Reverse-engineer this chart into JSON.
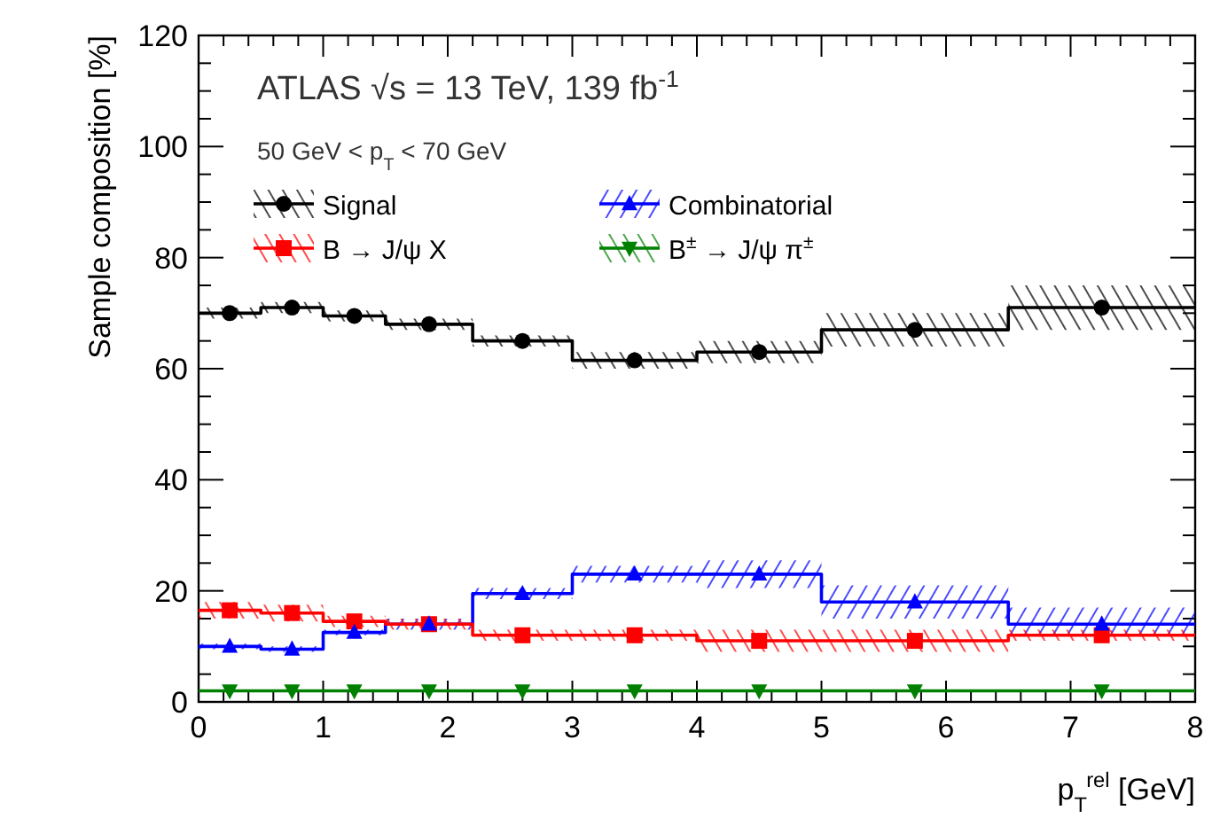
{
  "chart_data": {
    "type": "step",
    "xlabel": "p$_{T}$$^{rel}$ [GeV]",
    "ylabel": "Sample composition [%]",
    "annotations": [
      "ATLAS √s = 13 TeV, 139 fb$^{-1}$",
      "50 GeV < p$_{T}$ < 70 GeV"
    ],
    "series": [
      {
        "name": "Signal",
        "color": "#000000",
        "x": [
          0,
          0.5,
          1,
          1.5,
          2.2,
          3,
          4,
          5,
          6.5,
          8
        ],
        "values": [
          70,
          71,
          69.5,
          68,
          65,
          61.5,
          63,
          67,
          71,
          71
        ],
        "lower": [
          69,
          70,
          68.5,
          67,
          64,
          60,
          61,
          64,
          67,
          67
        ],
        "upper": [
          71,
          72,
          70.5,
          69,
          66,
          63,
          65,
          70,
          75,
          75
        ]
      },
      {
        "type": "scatter",
        "color": "#000000",
        "marker": "circle",
        "x": [
          0.25,
          0.75,
          1.25,
          1.85,
          2.6,
          3.5,
          4.5,
          5.75,
          7.25
        ],
        "values": [
          70,
          71,
          69.5,
          68,
          65,
          61.5,
          63,
          67,
          71
        ]
      },
      {
        "name": "Combinatorial",
        "color": "#0000ff",
        "x": [
          0,
          0.5,
          1,
          1.5,
          2.2,
          3,
          4,
          5,
          6.5,
          8
        ],
        "values": [
          10,
          9.5,
          12.5,
          14,
          19.5,
          23,
          23,
          18,
          14,
          14
        ],
        "lower": [
          9.5,
          9,
          12,
          13,
          18.5,
          21.5,
          20.5,
          15,
          12,
          12
        ],
        "upper": [
          10.5,
          10,
          13,
          15,
          20.5,
          24.5,
          25.5,
          21,
          17,
          17
        ]
      },
      {
        "type": "scatter",
        "color": "#0000ff",
        "marker": "triangle",
        "x": [
          0.25,
          0.75,
          1.25,
          1.85,
          2.6,
          3.5,
          4.5,
          5.75,
          7.25
        ],
        "values": [
          10,
          9.5,
          12.5,
          14,
          19.5,
          23,
          23,
          18,
          14
        ]
      },
      {
        "name": "B → J/ψ X",
        "color": "#ff0000",
        "x": [
          0,
          0.5,
          1,
          1.5,
          2.2,
          3,
          4,
          5,
          6.5,
          8
        ],
        "values": [
          16.5,
          16,
          14.5,
          14,
          12,
          12,
          11,
          11,
          12,
          12
        ],
        "lower": [
          15,
          14.5,
          13.5,
          13,
          11,
          11,
          9,
          9,
          11,
          11
        ],
        "upper": [
          18,
          17.5,
          15.5,
          15,
          13,
          13,
          13,
          13,
          13,
          13
        ]
      },
      {
        "type": "scatter",
        "color": "#ff0000",
        "marker": "square",
        "x": [
          0.25,
          0.75,
          1.25,
          1.85,
          2.6,
          3.5,
          4.5,
          5.75,
          7.25
        ],
        "values": [
          16.5,
          16,
          14.5,
          14,
          12,
          12,
          11,
          11,
          12
        ]
      },
      {
        "name": "B$^{±}$ → J/ψ π$^{±}$",
        "color": "#008000",
        "x": [
          0,
          0.5,
          1,
          1.5,
          2.2,
          3,
          4,
          5,
          6.5,
          8
        ],
        "values": [
          2,
          2,
          2,
          2,
          2,
          2,
          2,
          2,
          2,
          2
        ]
      },
      {
        "type": "scatter",
        "color": "#008000",
        "marker": "triangle-down",
        "x": [
          0.25,
          0.75,
          1.25,
          1.85,
          2.6,
          3.5,
          4.5,
          5.75,
          7.25
        ],
        "values": [
          2,
          2,
          2,
          2,
          2,
          2,
          2,
          2,
          2
        ]
      }
    ],
    "xlim": [
      0,
      8
    ],
    "xticks": [
      0,
      1,
      2,
      3,
      4,
      5,
      6,
      7,
      8
    ],
    "ylim": [
      0,
      120
    ],
    "yticks": [
      0,
      20,
      40,
      60,
      80,
      100,
      120
    ],
    "legend": "top left"
  }
}
